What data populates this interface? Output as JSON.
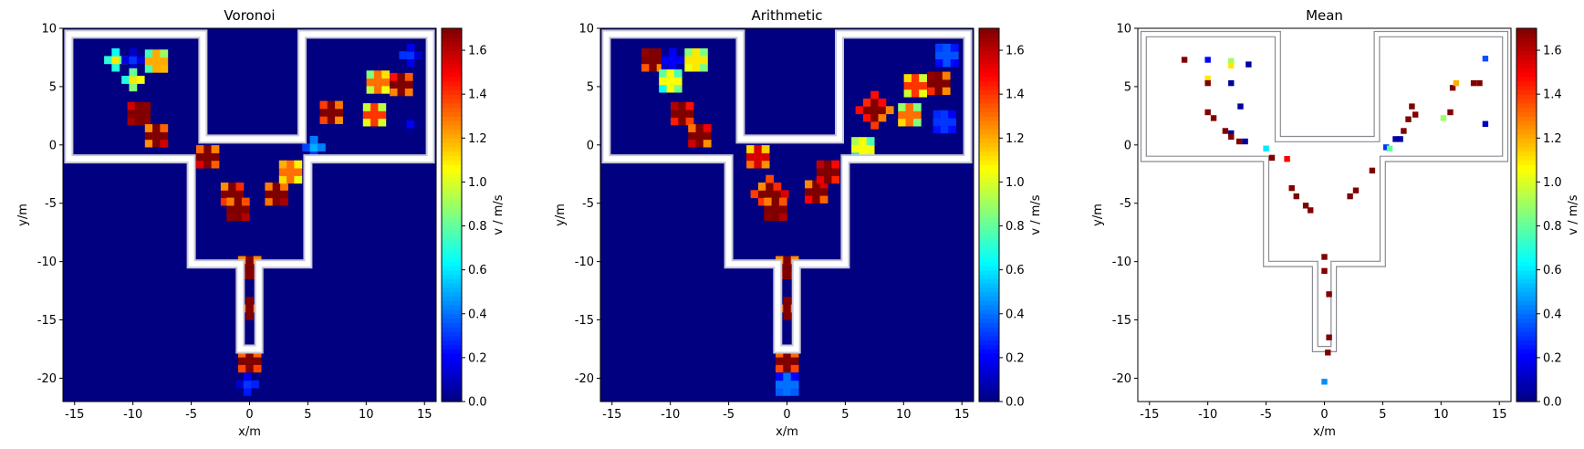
{
  "chart_data": [
    {
      "type": "heatmap",
      "title": "Voronoi",
      "xlabel": "x/m",
      "ylabel": "y/m",
      "xlim": [
        -16,
        16
      ],
      "ylim": [
        -22,
        10
      ],
      "xticks": [
        -15,
        -10,
        -5,
        0,
        5,
        10,
        15
      ],
      "yticks": [
        -20,
        -15,
        -10,
        -5,
        0,
        5,
        10
      ],
      "background_value": 0.0,
      "colorbar": {
        "label": "v / m/s",
        "min": 0.0,
        "max": 1.7,
        "ticks": [
          0.0,
          0.2,
          0.4,
          0.6,
          0.8,
          1.0,
          1.2,
          1.4,
          1.6
        ],
        "colormap": "jet"
      },
      "clusters": [
        {
          "x": -11.5,
          "y": 7.3,
          "r": 0.9,
          "v": 1.1
        },
        {
          "x": -10.0,
          "y": 7.3,
          "r": 0.9,
          "v": 0.3
        },
        {
          "x": -8.0,
          "y": 7.2,
          "r": 1.0,
          "v": 1.2
        },
        {
          "x": -10.0,
          "y": 5.6,
          "r": 0.9,
          "v": 1.1
        },
        {
          "x": -9.5,
          "y": 2.7,
          "r": 1.0,
          "v": 1.7
        },
        {
          "x": -8.0,
          "y": 0.8,
          "r": 1.1,
          "v": 1.7
        },
        {
          "x": -3.6,
          "y": -1.0,
          "r": 1.1,
          "v": 1.7
        },
        {
          "x": -1.5,
          "y": -4.2,
          "r": 1.1,
          "v": 1.7
        },
        {
          "x": -1.0,
          "y": -5.5,
          "r": 1.0,
          "v": 1.7
        },
        {
          "x": 2.3,
          "y": -4.2,
          "r": 1.0,
          "v": 1.7
        },
        {
          "x": 3.5,
          "y": -2.3,
          "r": 1.0,
          "v": 1.3
        },
        {
          "x": 5.5,
          "y": -0.2,
          "r": 0.9,
          "v": 0.5
        },
        {
          "x": 7.0,
          "y": 2.8,
          "r": 1.2,
          "v": 1.7
        },
        {
          "x": 10.7,
          "y": 2.6,
          "r": 1.0,
          "v": 1.4
        },
        {
          "x": 11.0,
          "y": 5.4,
          "r": 1.0,
          "v": 1.3
        },
        {
          "x": 13.0,
          "y": 5.2,
          "r": 1.0,
          "v": 1.7
        },
        {
          "x": 13.8,
          "y": 7.7,
          "r": 0.9,
          "v": 0.3
        },
        {
          "x": 13.8,
          "y": 1.8,
          "r": 0.8,
          "v": 0.2
        },
        {
          "x": 0.0,
          "y": -10.5,
          "r": 1.0,
          "v": 1.7
        },
        {
          "x": 0.0,
          "y": -14.0,
          "r": 0.7,
          "v": 1.7
        },
        {
          "x": 0.0,
          "y": -18.5,
          "r": 1.0,
          "v": 1.7
        },
        {
          "x": -0.2,
          "y": -20.5,
          "r": 0.9,
          "v": 0.3
        }
      ]
    },
    {
      "type": "heatmap",
      "title": "Arithmetic",
      "xlabel": "x/m",
      "ylabel": "y/m",
      "xlim": [
        -16,
        16
      ],
      "ylim": [
        -22,
        10
      ],
      "xticks": [
        -15,
        -10,
        -5,
        0,
        5,
        10,
        15
      ],
      "yticks": [
        -20,
        -15,
        -10,
        -5,
        0,
        5,
        10
      ],
      "background_value": 0.0,
      "colorbar": {
        "label": "v / m/s",
        "min": 0.0,
        "max": 1.7,
        "ticks": [
          0.0,
          0.2,
          0.4,
          0.6,
          0.8,
          1.0,
          1.2,
          1.4,
          1.6
        ],
        "colormap": "jet"
      },
      "clusters": [
        {
          "x": -11.5,
          "y": 7.3,
          "r": 1.0,
          "v": 1.7
        },
        {
          "x": -9.8,
          "y": 7.3,
          "r": 1.0,
          "v": 0.2
        },
        {
          "x": -7.8,
          "y": 7.3,
          "r": 1.0,
          "v": 1.1
        },
        {
          "x": -10.0,
          "y": 5.5,
          "r": 1.1,
          "v": 1.05
        },
        {
          "x": -9.0,
          "y": 2.7,
          "r": 1.2,
          "v": 1.7
        },
        {
          "x": -7.5,
          "y": 0.8,
          "r": 1.2,
          "v": 1.7
        },
        {
          "x": -2.5,
          "y": -1.0,
          "r": 1.0,
          "v": 1.55
        },
        {
          "x": -1.5,
          "y": -4.2,
          "r": 1.3,
          "v": 1.7
        },
        {
          "x": -1.0,
          "y": -5.5,
          "r": 1.1,
          "v": 1.7
        },
        {
          "x": 2.5,
          "y": -4.0,
          "r": 1.2,
          "v": 1.7
        },
        {
          "x": 3.5,
          "y": -2.3,
          "r": 1.0,
          "v": 1.7
        },
        {
          "x": 6.5,
          "y": -0.3,
          "r": 1.0,
          "v": 1.05
        },
        {
          "x": 7.5,
          "y": 3.0,
          "r": 1.4,
          "v": 1.7
        },
        {
          "x": 10.5,
          "y": 2.6,
          "r": 1.0,
          "v": 1.3
        },
        {
          "x": 11.0,
          "y": 5.1,
          "r": 1.1,
          "v": 1.4
        },
        {
          "x": 13.0,
          "y": 5.3,
          "r": 1.1,
          "v": 1.7
        },
        {
          "x": 13.7,
          "y": 7.7,
          "r": 1.0,
          "v": 0.35
        },
        {
          "x": 13.5,
          "y": 2.0,
          "r": 1.1,
          "v": 0.3
        },
        {
          "x": 0.0,
          "y": -10.5,
          "r": 1.0,
          "v": 1.7
        },
        {
          "x": 0.0,
          "y": -14.0,
          "r": 0.7,
          "v": 1.7
        },
        {
          "x": 0.0,
          "y": -18.5,
          "r": 1.2,
          "v": 1.7
        },
        {
          "x": 0.0,
          "y": -20.5,
          "r": 1.0,
          "v": 0.4
        }
      ]
    },
    {
      "type": "heatmap",
      "title": "Mean",
      "xlabel": "x/m",
      "ylabel": "y/m",
      "xlim": [
        -16,
        16
      ],
      "ylim": [
        -22,
        10
      ],
      "xticks": [
        -15,
        -10,
        -5,
        0,
        5,
        10,
        15
      ],
      "yticks": [
        -20,
        -15,
        -10,
        -5,
        0,
        5,
        10
      ],
      "background_value": null,
      "colorbar": {
        "label": "v / m/s",
        "min": 0.0,
        "max": 1.7,
        "ticks": [
          0.0,
          0.2,
          0.4,
          0.6,
          0.8,
          1.0,
          1.2,
          1.4,
          1.6
        ],
        "colormap": "jet"
      },
      "cells": [
        {
          "x": -12.0,
          "y": 7.3,
          "v": 1.7
        },
        {
          "x": -10.0,
          "y": 7.3,
          "v": 0.2
        },
        {
          "x": -8.0,
          "y": 7.2,
          "v": 0.9
        },
        {
          "x": -8.0,
          "y": 6.8,
          "v": 1.1
        },
        {
          "x": -6.5,
          "y": 6.9,
          "v": 0.05
        },
        {
          "x": -10.0,
          "y": 5.7,
          "v": 1.1
        },
        {
          "x": -10.0,
          "y": 5.3,
          "v": 1.7
        },
        {
          "x": -8.0,
          "y": 5.3,
          "v": 0.05
        },
        {
          "x": -7.2,
          "y": 3.3,
          "v": 0.05
        },
        {
          "x": -10.0,
          "y": 2.8,
          "v": 1.7
        },
        {
          "x": -9.5,
          "y": 2.3,
          "v": 1.7
        },
        {
          "x": -8.5,
          "y": 1.2,
          "v": 1.7
        },
        {
          "x": -8.0,
          "y": 1.0,
          "v": 0.05
        },
        {
          "x": -8.0,
          "y": 0.7,
          "v": 1.7
        },
        {
          "x": -7.3,
          "y": 0.3,
          "v": 1.7
        },
        {
          "x": -6.8,
          "y": 0.3,
          "v": 0.05
        },
        {
          "x": -5.0,
          "y": -0.3,
          "v": 0.6
        },
        {
          "x": -4.5,
          "y": -1.1,
          "v": 1.7
        },
        {
          "x": -3.2,
          "y": -1.2,
          "v": 1.5
        },
        {
          "x": -2.8,
          "y": -3.7,
          "v": 1.7
        },
        {
          "x": -2.4,
          "y": -4.4,
          "v": 1.7
        },
        {
          "x": -1.6,
          "y": -5.2,
          "v": 1.7
        },
        {
          "x": -1.2,
          "y": -5.6,
          "v": 1.7
        },
        {
          "x": 2.2,
          "y": -4.4,
          "v": 1.7
        },
        {
          "x": 2.7,
          "y": -3.9,
          "v": 1.7
        },
        {
          "x": 4.1,
          "y": -2.2,
          "v": 1.7
        },
        {
          "x": 5.3,
          "y": -0.2,
          "v": 0.3
        },
        {
          "x": 5.6,
          "y": -0.3,
          "v": 0.8
        },
        {
          "x": 6.1,
          "y": 0.5,
          "v": 0.05
        },
        {
          "x": 6.5,
          "y": 0.5,
          "v": 0.05
        },
        {
          "x": 6.8,
          "y": 1.2,
          "v": 1.7
        },
        {
          "x": 7.2,
          "y": 2.2,
          "v": 1.7
        },
        {
          "x": 7.5,
          "y": 3.3,
          "v": 1.7
        },
        {
          "x": 7.8,
          "y": 2.6,
          "v": 1.7
        },
        {
          "x": 10.2,
          "y": 2.3,
          "v": 0.9
        },
        {
          "x": 10.8,
          "y": 2.8,
          "v": 1.7
        },
        {
          "x": 11.0,
          "y": 4.9,
          "v": 1.7
        },
        {
          "x": 11.3,
          "y": 5.3,
          "v": 1.2
        },
        {
          "x": 12.8,
          "y": 5.3,
          "v": 1.7
        },
        {
          "x": 13.3,
          "y": 5.3,
          "v": 1.7
        },
        {
          "x": 13.8,
          "y": 7.4,
          "v": 0.35
        },
        {
          "x": 13.8,
          "y": 1.8,
          "v": 0.1
        },
        {
          "x": 0.0,
          "y": -9.6,
          "v": 1.7
        },
        {
          "x": 0.0,
          "y": -10.8,
          "v": 1.7
        },
        {
          "x": 0.4,
          "y": -12.8,
          "v": 1.7
        },
        {
          "x": 0.4,
          "y": -16.5,
          "v": 1.7
        },
        {
          "x": 0.3,
          "y": -17.8,
          "v": 1.7
        },
        {
          "x": 0.0,
          "y": -20.3,
          "v": 0.45
        }
      ]
    }
  ]
}
